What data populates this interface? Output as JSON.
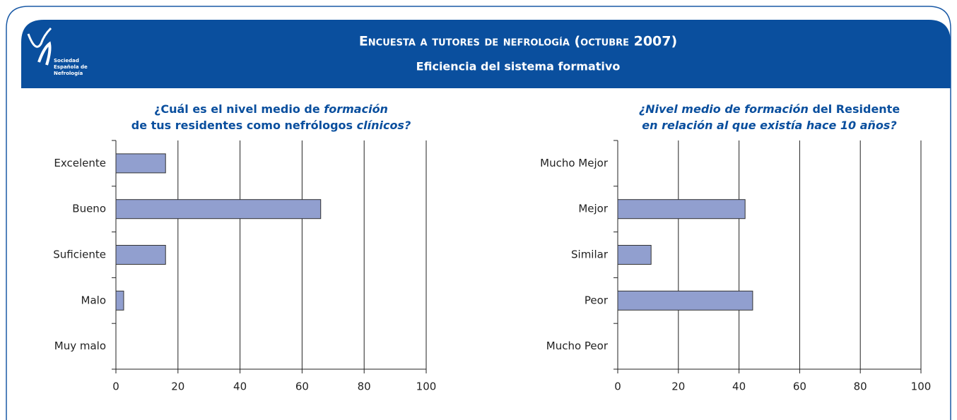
{
  "header": {
    "title": "Encuesta a tutores de nefrología (octubre 2007)",
    "subtitle": "Eficiencia del sistema formativo",
    "logo_text": [
      "Sociedad",
      "Española de",
      "Nefrología"
    ]
  },
  "chart_data": [
    {
      "type": "barh",
      "title_lines": [
        [
          {
            "text": "¿Cuál es el nivel medio de ",
            "italic": false
          },
          {
            "text": "formación",
            "italic": true
          }
        ],
        [
          {
            "text": "de tus residentes como nefrólogos ",
            "italic": false
          },
          {
            "text": "clínicos?",
            "italic": true
          }
        ]
      ],
      "categories": [
        "Excelente",
        "Bueno",
        "Suficiente",
        "Malo",
        "Muy malo"
      ],
      "values": [
        16,
        66,
        16,
        2.5,
        0
      ],
      "color": "#919fcf",
      "xlim": [
        0,
        100
      ],
      "xticks": [
        0,
        20,
        40,
        60,
        80,
        100
      ],
      "grid": true
    },
    {
      "type": "barh",
      "title_lines": [
        [
          {
            "text": "¿Nivel medio de formación",
            "italic": true
          },
          {
            "text": " del Residente",
            "italic": false
          }
        ],
        [
          {
            "text": "en relación al que existía hace 10 años?",
            "italic": true
          }
        ]
      ],
      "categories": [
        "Mucho Mejor",
        "Mejor",
        "Similar",
        "Peor",
        "Mucho Peor"
      ],
      "values": [
        0,
        42,
        11,
        44.5,
        0
      ],
      "color": "#919fcf",
      "xlim": [
        0,
        100
      ],
      "xticks": [
        0,
        20,
        40,
        60,
        80,
        100
      ],
      "grid": true
    }
  ]
}
